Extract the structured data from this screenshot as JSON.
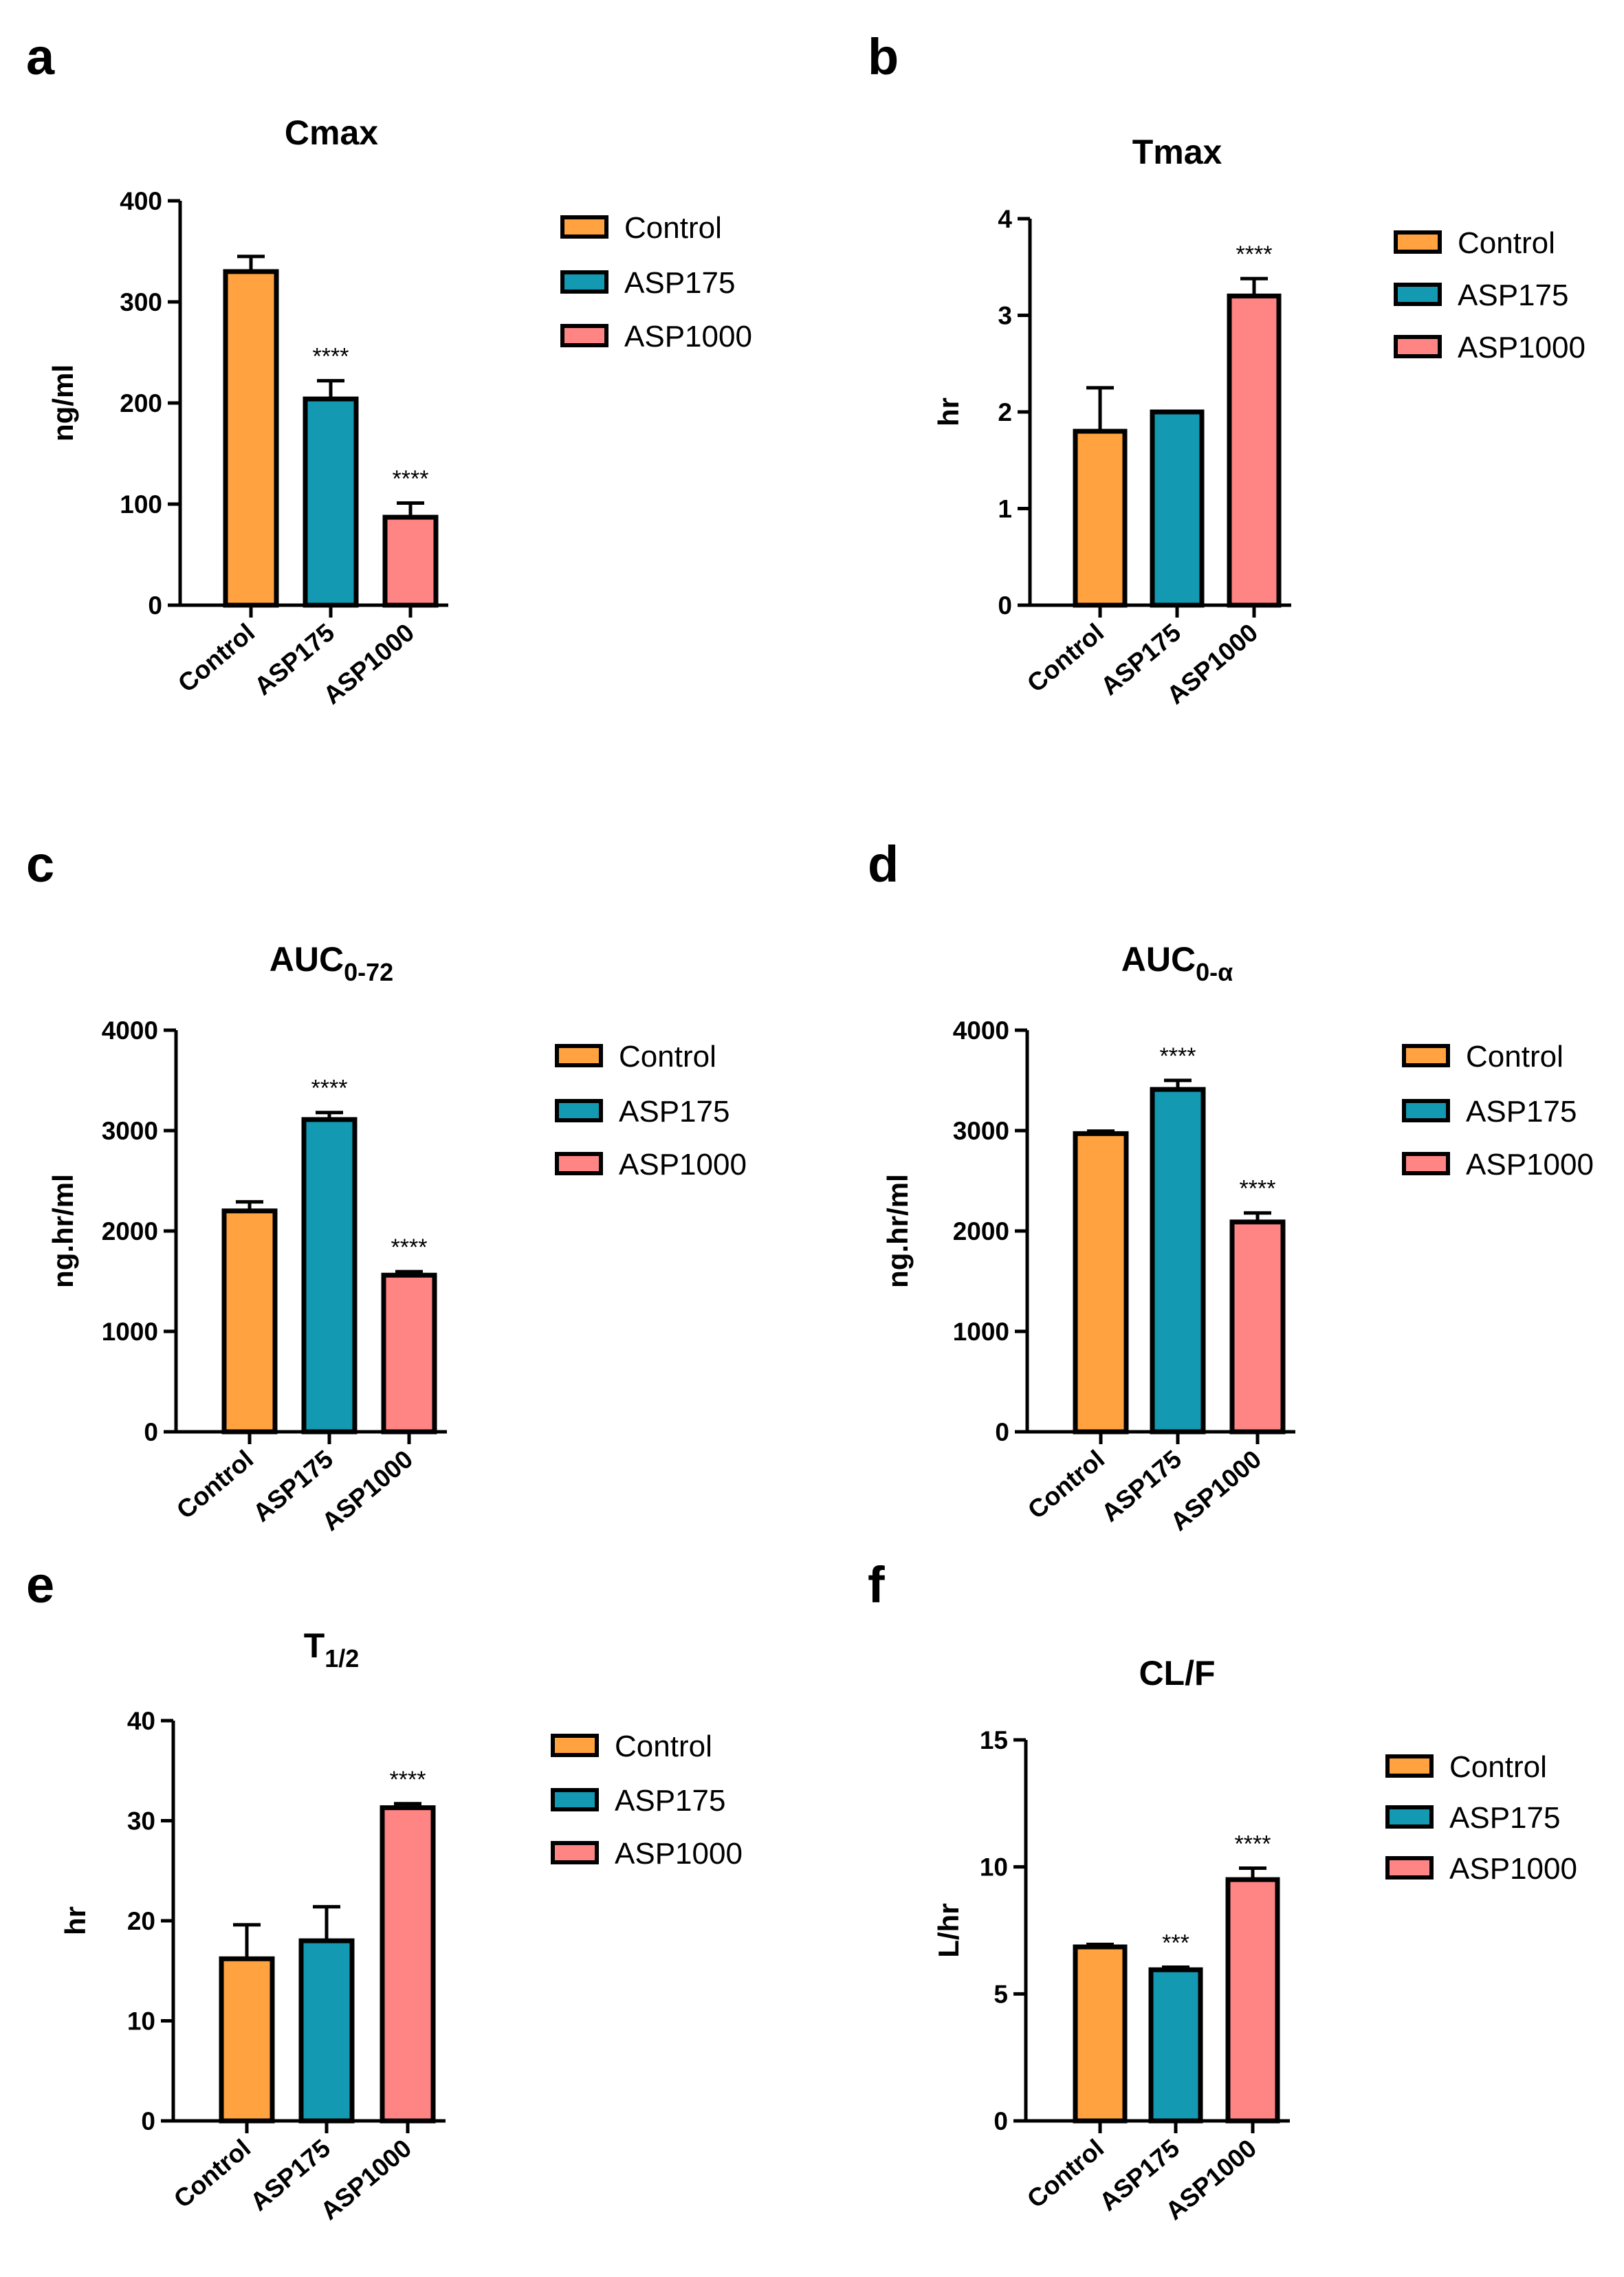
{
  "colors": {
    "Control": "#FFA23F",
    "ASP175": "#1399B2",
    "ASP1000": "#FF8484",
    "stroke": "#000000"
  },
  "chart_data": [
    {
      "panel": "a",
      "type": "bar",
      "title": "Cmax",
      "title_sub": "",
      "ylabel": "ng/ml",
      "categories": [
        "Control",
        "ASP175",
        "ASP1000"
      ],
      "values": [
        330,
        204,
        87
      ],
      "errors": [
        15,
        18,
        14
      ],
      "significance": [
        "",
        "****",
        "****"
      ],
      "ylim": [
        0,
        400
      ],
      "yticks": [
        "0",
        "100",
        "200",
        "300",
        "400"
      ],
      "legend": [
        "Control",
        "ASP175",
        "ASP1000"
      ]
    },
    {
      "panel": "b",
      "type": "bar",
      "title": "Tmax",
      "title_sub": "",
      "ylabel": "hr",
      "categories": [
        "Control",
        "ASP175",
        "ASP1000"
      ],
      "values": [
        1.8,
        2.0,
        3.2
      ],
      "errors": [
        0.45,
        0.0,
        0.18
      ],
      "significance": [
        "",
        "",
        "****"
      ],
      "ylim": [
        0,
        4
      ],
      "yticks": [
        "0",
        "1",
        "2",
        "3",
        "4"
      ],
      "legend": [
        "Control",
        "ASP175",
        "ASP1000"
      ]
    },
    {
      "panel": "c",
      "type": "bar",
      "title": "AUC",
      "title_sub": "0-72",
      "ylabel": "ng.hr/ml",
      "categories": [
        "Control",
        "ASP175",
        "ASP1000"
      ],
      "values": [
        2200,
        3110,
        1560
      ],
      "errors": [
        90,
        70,
        35
      ],
      "significance": [
        "",
        "****",
        "****"
      ],
      "ylim": [
        0,
        4000
      ],
      "yticks": [
        "0",
        "1000",
        "2000",
        "3000",
        "4000"
      ],
      "legend": [
        "Control",
        "ASP175",
        "ASP1000"
      ]
    },
    {
      "panel": "d",
      "type": "bar",
      "title": "AUC",
      "title_sub": "0-α",
      "ylabel": "ng.hr/ml",
      "categories": [
        "Control",
        "ASP175",
        "ASP1000"
      ],
      "values": [
        2970,
        3410,
        2090
      ],
      "errors": [
        25,
        90,
        90
      ],
      "significance": [
        "",
        "****",
        "****"
      ],
      "ylim": [
        0,
        4000
      ],
      "yticks": [
        "0",
        "1000",
        "2000",
        "3000",
        "4000"
      ],
      "legend": [
        "Control",
        "ASP175",
        "ASP1000"
      ]
    },
    {
      "panel": "e",
      "type": "bar",
      "title": "T",
      "title_sub": "1/2",
      "ylabel": "hr",
      "categories": [
        "Control",
        "ASP175",
        "ASP1000"
      ],
      "values": [
        16.2,
        18.0,
        31.3
      ],
      "errors": [
        3.4,
        3.4,
        0.4
      ],
      "significance": [
        "",
        "",
        "****"
      ],
      "ylim": [
        0,
        40
      ],
      "yticks": [
        "0",
        "10",
        "20",
        "30",
        "40"
      ],
      "legend": [
        "Control",
        "ASP175",
        "ASP1000"
      ]
    },
    {
      "panel": "f",
      "type": "bar",
      "title": "CL/F",
      "title_sub": "",
      "ylabel": "L/hr",
      "categories": [
        "Control",
        "ASP175",
        "ASP1000"
      ],
      "values": [
        6.85,
        5.95,
        9.5
      ],
      "errors": [
        0.1,
        0.1,
        0.45
      ],
      "significance": [
        "",
        "***",
        "****"
      ],
      "ylim": [
        0,
        15
      ],
      "yticks": [
        "0",
        "5",
        "10",
        "15"
      ],
      "legend": [
        "Control",
        "ASP175",
        "ASP1000"
      ]
    }
  ]
}
